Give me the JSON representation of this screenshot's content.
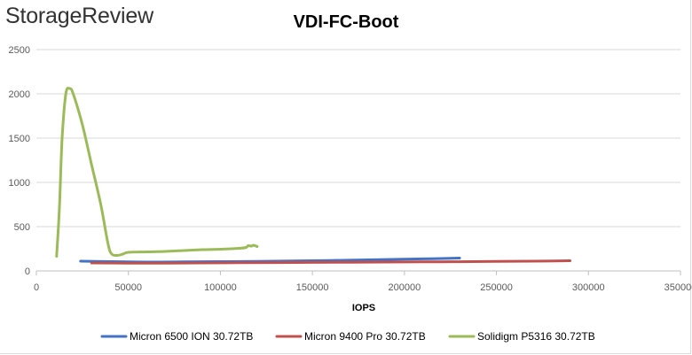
{
  "brand": {
    "logo_text": "StorageReview"
  },
  "chart_data": {
    "type": "line",
    "title": "VDI-FC-Boot",
    "xlabel": "IOPS",
    "ylabel": "",
    "xlim": [
      0,
      350000
    ],
    "ylim": [
      0,
      2500
    ],
    "x_ticks": [
      "0",
      "50000",
      "100000",
      "150000",
      "200000",
      "250000",
      "300000",
      "350000"
    ],
    "y_ticks": [
      "0",
      "500",
      "1000",
      "1500",
      "2000",
      "2500"
    ],
    "grid": "horizontal",
    "legend_position": "bottom",
    "series": [
      {
        "name": "Micron 6500 ION 30.72TB",
        "color": "#4472c4",
        "points": [
          [
            24000,
            110
          ],
          [
            40000,
            105
          ],
          [
            60000,
            100
          ],
          [
            80000,
            102
          ],
          [
            100000,
            105
          ],
          [
            120000,
            108
          ],
          [
            140000,
            112
          ],
          [
            160000,
            118
          ],
          [
            180000,
            125
          ],
          [
            200000,
            132
          ],
          [
            215000,
            138
          ],
          [
            230000,
            145
          ]
        ]
      },
      {
        "name": "Micron 9400 Pro 30.72TB",
        "color": "#c0504d",
        "points": [
          [
            30000,
            90
          ],
          [
            50000,
            88
          ],
          [
            70000,
            88
          ],
          [
            90000,
            90
          ],
          [
            110000,
            92
          ],
          [
            130000,
            94
          ],
          [
            150000,
            96
          ],
          [
            170000,
            98
          ],
          [
            190000,
            100
          ],
          [
            210000,
            102
          ],
          [
            230000,
            104
          ],
          [
            250000,
            107
          ],
          [
            270000,
            110
          ],
          [
            290000,
            115
          ]
        ]
      },
      {
        "name": "Solidigm P5316 30.72TB",
        "color": "#9bbb59",
        "points": [
          [
            11000,
            165
          ],
          [
            12500,
            700
          ],
          [
            14000,
            1500
          ],
          [
            16000,
            2000
          ],
          [
            18000,
            2060
          ],
          [
            20000,
            2000
          ],
          [
            25000,
            1650
          ],
          [
            30000,
            1200
          ],
          [
            35000,
            750
          ],
          [
            39000,
            300
          ],
          [
            41000,
            190
          ],
          [
            44000,
            175
          ],
          [
            47000,
            190
          ],
          [
            50000,
            210
          ],
          [
            60000,
            215
          ],
          [
            70000,
            220
          ],
          [
            80000,
            230
          ],
          [
            90000,
            240
          ],
          [
            100000,
            245
          ],
          [
            110000,
            255
          ],
          [
            114000,
            265
          ],
          [
            115000,
            285
          ],
          [
            117000,
            280
          ],
          [
            118000,
            290
          ],
          [
            120000,
            275
          ]
        ]
      }
    ]
  }
}
